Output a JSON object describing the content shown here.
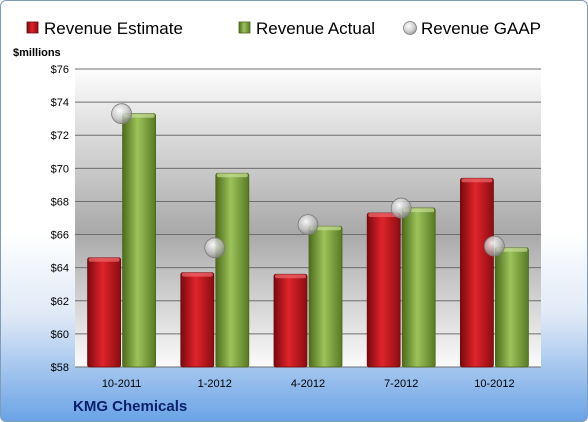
{
  "chart_data": {
    "type": "bar",
    "categories": [
      "10-2011",
      "1-2012",
      "4-2012",
      "7-2012",
      "10-2012"
    ],
    "series": [
      {
        "name": "Revenue Estimate",
        "values": [
          64.6,
          63.7,
          63.6,
          67.3,
          69.4
        ],
        "color": "#c0141b"
      },
      {
        "name": "Revenue Actual",
        "values": [
          73.3,
          69.7,
          66.5,
          67.6,
          65.2
        ],
        "color": "#7fa83a"
      }
    ],
    "scatter_series": {
      "name": "Revenue GAAP",
      "values": [
        73.3,
        65.2,
        66.6,
        67.6,
        65.3
      ],
      "color": "#b8b8b8"
    },
    "ylabel": "$millions",
    "ylim": [
      58,
      76
    ],
    "yticks": [
      "$58",
      "$60",
      "$62",
      "$64",
      "$66",
      "$68",
      "$70",
      "$72",
      "$74",
      "$76"
    ],
    "grid": true,
    "legend": "top",
    "title": "KMG Chemicals"
  }
}
